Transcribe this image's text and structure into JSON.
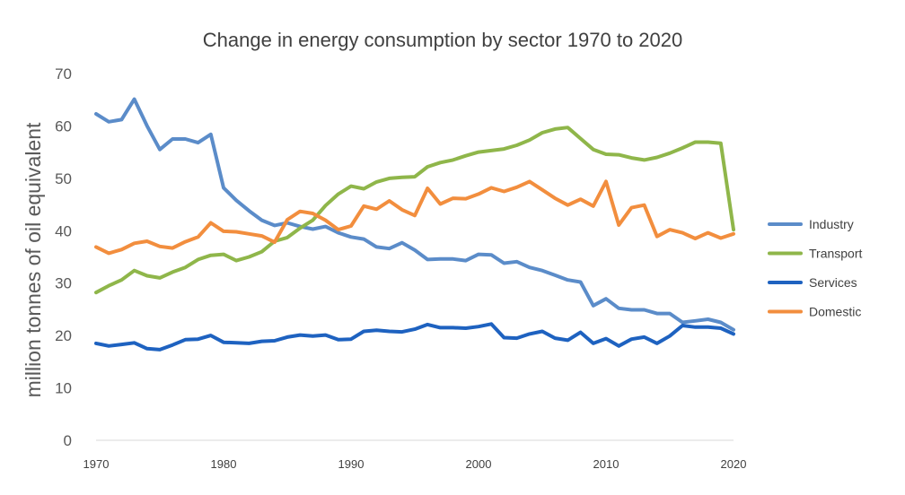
{
  "chart_data": {
    "type": "line",
    "title": "Change in energy consumption by sector 1970 to 2020",
    "xlabel": "",
    "ylabel": "million tonnes of oil equivalent",
    "xlim": [
      1970,
      2020
    ],
    "ylim": [
      0,
      70
    ],
    "x_ticks": [
      "1970",
      "1980",
      "1990",
      "2000",
      "2010",
      "2020"
    ],
    "y_ticks": [
      "0",
      "10",
      "20",
      "30",
      "40",
      "50",
      "60",
      "70"
    ],
    "grid": false,
    "legend_position": "right",
    "x": [
      1970,
      1971,
      1972,
      1973,
      1974,
      1975,
      1976,
      1977,
      1978,
      1979,
      1980,
      1981,
      1982,
      1983,
      1984,
      1985,
      1986,
      1987,
      1988,
      1989,
      1990,
      1991,
      1992,
      1993,
      1994,
      1995,
      1996,
      1997,
      1998,
      1999,
      2000,
      2001,
      2002,
      2003,
      2004,
      2005,
      2006,
      2007,
      2008,
      2009,
      2010,
      2011,
      2012,
      2013,
      2014,
      2015,
      2016,
      2017,
      2018,
      2019,
      2020
    ],
    "series": [
      {
        "name": "Industry",
        "color": "#5b8cc9",
        "values": [
          62.3,
          60.8,
          61.2,
          65.1,
          60.0,
          55.5,
          57.5,
          57.5,
          56.8,
          58.4,
          48.2,
          45.8,
          43.8,
          42.0,
          41.0,
          41.5,
          40.8,
          40.3,
          40.8,
          39.6,
          38.8,
          38.4,
          36.9,
          36.6,
          37.7,
          36.3,
          34.5,
          34.6,
          34.6,
          34.3,
          35.5,
          35.4,
          33.8,
          34.1,
          33.0,
          32.4,
          31.5,
          30.6,
          30.2,
          25.7,
          27.0,
          25.2,
          24.9,
          24.9,
          24.2,
          24.2,
          22.5,
          22.8,
          23.1,
          22.5,
          21.1
        ]
      },
      {
        "name": "Transport",
        "color": "#8fb64a",
        "values": [
          28.2,
          29.5,
          30.6,
          32.4,
          31.4,
          31.0,
          32.1,
          33.0,
          34.5,
          35.3,
          35.5,
          34.3,
          35.0,
          36.0,
          38.0,
          38.7,
          40.5,
          42.0,
          44.8,
          47.0,
          48.5,
          48.0,
          49.3,
          50.0,
          50.2,
          50.3,
          52.2,
          53.0,
          53.5,
          54.3,
          55.0,
          55.3,
          55.6,
          56.3,
          57.3,
          58.7,
          59.4,
          59.7,
          57.6,
          55.5,
          54.6,
          54.5,
          53.9,
          53.5,
          54.0,
          54.8,
          55.8,
          56.9,
          56.9,
          56.7,
          40.2
        ]
      },
      {
        "name": "Services",
        "color": "#1e62c0",
        "values": [
          18.5,
          18.0,
          18.3,
          18.6,
          17.5,
          17.3,
          18.2,
          19.2,
          19.3,
          20.0,
          18.7,
          18.6,
          18.5,
          18.9,
          19.0,
          19.7,
          20.1,
          19.9,
          20.1,
          19.2,
          19.3,
          20.8,
          21.0,
          20.8,
          20.7,
          21.2,
          22.1,
          21.5,
          21.5,
          21.4,
          21.7,
          22.2,
          19.6,
          19.5,
          20.3,
          20.8,
          19.5,
          19.1,
          20.6,
          18.5,
          19.4,
          18.0,
          19.3,
          19.7,
          18.5,
          19.9,
          21.9,
          21.6,
          21.6,
          21.4,
          20.3
        ]
      },
      {
        "name": "Domestic",
        "color": "#f28e3e",
        "values": [
          36.9,
          35.7,
          36.4,
          37.6,
          38.0,
          37.0,
          36.7,
          37.9,
          38.8,
          41.5,
          39.9,
          39.8,
          39.4,
          39.0,
          37.8,
          42.1,
          43.7,
          43.3,
          42.0,
          40.2,
          40.9,
          44.7,
          44.1,
          45.7,
          44.0,
          42.9,
          48.1,
          45.1,
          46.2,
          46.1,
          47.0,
          48.2,
          47.5,
          48.3,
          49.4,
          47.8,
          46.2,
          44.9,
          46.0,
          44.7,
          49.4,
          41.1,
          44.4,
          44.9,
          38.9,
          40.2,
          39.6,
          38.5,
          39.6,
          38.6,
          39.4
        ]
      }
    ]
  }
}
